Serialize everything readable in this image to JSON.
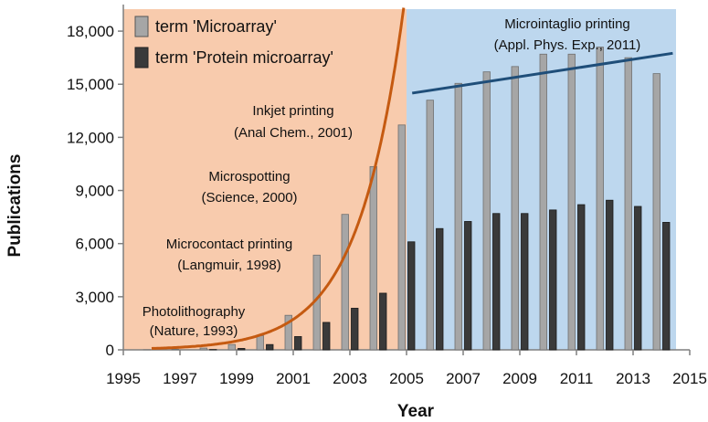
{
  "chart_data": {
    "type": "bar",
    "xlabel": "Year",
    "ylabel": "Publications",
    "xlim": [
      1995,
      2015
    ],
    "ylim": [
      0,
      19500
    ],
    "x_ticks": [
      "1995",
      "1997",
      "1999",
      "2001",
      "2003",
      "2005",
      "2007",
      "2009",
      "2011",
      "2013",
      "2015"
    ],
    "y_ticks": [
      "0",
      "3,000",
      "6,000",
      "9,000",
      "12,000",
      "15,000",
      "18,000"
    ],
    "y_tick_values": [
      0,
      3000,
      6000,
      9000,
      12000,
      15000,
      18000
    ],
    "years": [
      1996,
      1997,
      1998,
      1999,
      2000,
      2001,
      2002,
      2003,
      2004,
      2005,
      2006,
      2007,
      2008,
      2009,
      2010,
      2011,
      2012,
      2013,
      2014
    ],
    "series": [
      {
        "name": "term 'Microarray'",
        "color": "#a6a6a6",
        "values": [
          10,
          40,
          100,
          300,
          800,
          1950,
          5350,
          7650,
          10350,
          12700,
          14100,
          15050,
          15700,
          16000,
          16700,
          16700,
          17100,
          16500,
          15600
        ]
      },
      {
        "name": "term 'Protein microarray'",
        "color": "#3a3a3a",
        "values": [
          0,
          0,
          20,
          80,
          300,
          750,
          1550,
          2350,
          3200,
          6100,
          6850,
          7250,
          7700,
          7700,
          7900,
          8200,
          8450,
          8100,
          7200
        ]
      }
    ],
    "region_colors": {
      "early": "#f8cbad",
      "late": "#bdd7ee"
    },
    "trend_colors": {
      "exponential": "#c55a11",
      "linear": "#1f4e79"
    },
    "region_split_year": 2005,
    "exp_curve": {
      "start_year": 1996.0,
      "end_year": 2005.0,
      "y_at_2002": 3200
    },
    "linear_trend": {
      "start_year": 2005.2,
      "start_value": 14500,
      "end_year": 2014.4,
      "end_value": 16750
    },
    "annotations": [
      {
        "line1": "Photolithography",
        "line2": "(Nature, 1993)"
      },
      {
        "line1": "Microcontact printing",
        "line2": "(Langmuir, 1998)"
      },
      {
        "line1": "Microspotting",
        "line2": "(Science, 2000)"
      },
      {
        "line1": "Inkjet printing",
        "line2": "(Anal Chem., 2001)"
      },
      {
        "line1": "Microintaglio printing",
        "line2": "(Appl. Phys. Exp., 2011)"
      }
    ]
  }
}
